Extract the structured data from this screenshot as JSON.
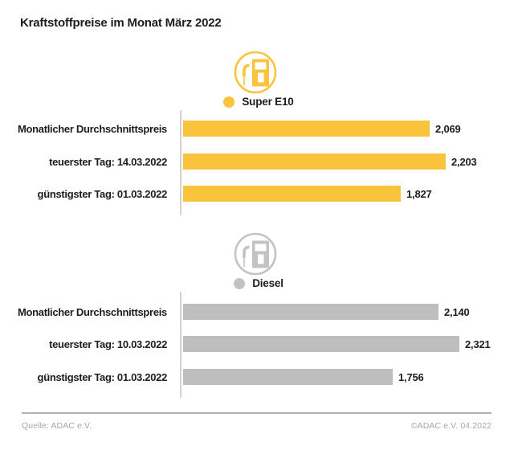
{
  "page": {
    "title": "Kraftstoffpreise im Monat März 2022"
  },
  "colors": {
    "super_e10_yellow": "#F9C43B",
    "diesel_gray": "#BEBEBE",
    "text_dark": "#1D1D1B",
    "footer_gray": "#A6A6A6",
    "axis_gray": "#D2D2D2"
  },
  "chart_data": [
    {
      "type": "bar",
      "orientation": "horizontal",
      "title": "Super E10",
      "legend": "Super E10",
      "series_color": "#F9C43B",
      "icon": "fuel-pump-icon",
      "categories": [
        "Monatlicher Durchschnittspreis",
        "teuerster Tag: 14.03.2022",
        "günstigster Tag: 01.03.2022"
      ],
      "values": [
        2.069,
        2.203,
        1.827
      ],
      "value_labels": [
        "2,069",
        "2,203",
        "1,827"
      ],
      "xlim": [
        0,
        2.5
      ],
      "grid": false,
      "legend_position": "top-center"
    },
    {
      "type": "bar",
      "orientation": "horizontal",
      "title": "Diesel",
      "legend": "Diesel",
      "series_color": "#BEBEBE",
      "icon": "fuel-pump-icon",
      "categories": [
        "Monatlicher Durchschnittspreis",
        "teuerster Tag: 10.03.2022",
        "günstigster Tag: 01.03.2022"
      ],
      "values": [
        2.14,
        2.321,
        1.756
      ],
      "value_labels": [
        "2,140",
        "2,321",
        "1,756"
      ],
      "xlim": [
        0,
        2.5
      ],
      "grid": false,
      "legend_position": "top-center"
    }
  ],
  "footer": {
    "source": "Quelle: ADAC e.V.",
    "copyright": "©ADAC e.V. 04.2022"
  }
}
